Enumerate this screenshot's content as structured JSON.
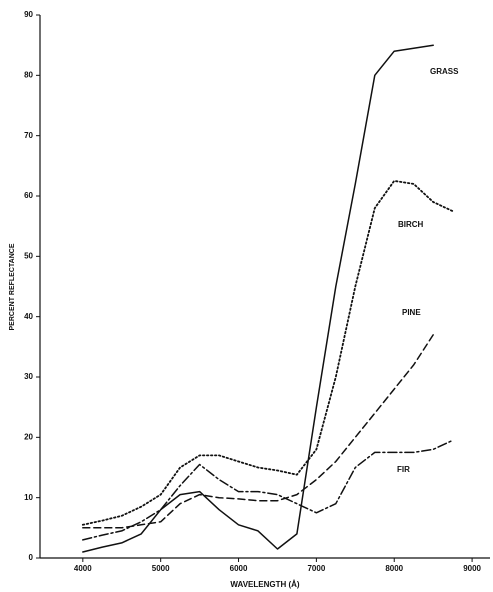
{
  "chart_data": {
    "type": "line",
    "x_label": "WAVELENGTH (Å)",
    "y_label": "PERCENT REFLECTANCE",
    "x": [
      4000,
      4250,
      4500,
      4750,
      5000,
      5250,
      5500,
      5750,
      6000,
      6250,
      6500,
      6750,
      7000,
      7250,
      7500,
      7750,
      8000,
      8250,
      8500,
      8750
    ],
    "series": [
      {
        "name": "GRASS",
        "color": "#111111",
        "style": "solid",
        "values": [
          1,
          1.8,
          2.5,
          4,
          8,
          10.5,
          11,
          8,
          5.5,
          4.5,
          1.5,
          4,
          25,
          45,
          62,
          80,
          84,
          84.5,
          85,
          null
        ]
      },
      {
        "name": "BIRCH",
        "color": "#111111",
        "style": "dotted",
        "values": [
          5.5,
          6.2,
          7,
          8.5,
          10.5,
          15,
          17,
          17,
          16,
          15,
          14.5,
          13.8,
          18,
          30,
          45,
          58,
          62.5,
          62,
          59,
          57.5
        ]
      },
      {
        "name": "PINE",
        "color": "#111111",
        "style": "dashed",
        "values": [
          5,
          5,
          5,
          5.5,
          6,
          9,
          10.5,
          10,
          9.8,
          9.5,
          9.5,
          10.5,
          13,
          16,
          20,
          24,
          28,
          32,
          37,
          null
        ]
      },
      {
        "name": "FIR",
        "color": "#111111",
        "style": "dashdot",
        "values": [
          3,
          3.8,
          4.5,
          6,
          8,
          12,
          15.5,
          13,
          11,
          11,
          10.5,
          9,
          7.5,
          9,
          15,
          17.5,
          17.5,
          17.5,
          18,
          19.5
        ]
      }
    ],
    "xlim": [
      3450,
      9230
    ],
    "ylim": [
      0,
      90
    ],
    "xticks": [
      4000,
      5000,
      6000,
      7000,
      8000,
      9000
    ],
    "yticks": [
      0,
      10,
      20,
      30,
      40,
      50,
      60,
      70,
      80,
      90
    ],
    "grid": false
  }
}
